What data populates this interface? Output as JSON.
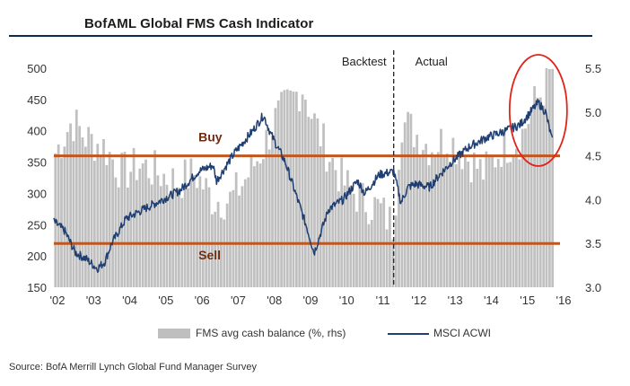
{
  "title": "BofAML Global FMS Cash Indicator",
  "source": "Source: BofA Merrill Lynch Global Fund Manager Survey",
  "chart_data": {
    "type": "bar+line",
    "x_tick_labels": [
      "'02",
      "'03",
      "'04",
      "'05",
      "'06",
      "'07",
      "'08",
      "'09",
      "'10",
      "'11",
      "'12",
      "'13",
      "'14",
      "'15",
      "'16"
    ],
    "x_range": [
      2002.0,
      2016.0
    ],
    "left_axis": {
      "ylim": [
        150,
        500
      ],
      "ticks": [
        "150",
        "200",
        "250",
        "300",
        "350",
        "400",
        "450",
        "500"
      ],
      "series": "MSCI ACWI"
    },
    "right_axis": {
      "ylim": [
        3.0,
        5.5
      ],
      "ticks": [
        "3.0",
        "3.5",
        "4.0",
        "4.5",
        "5.0",
        "5.5"
      ],
      "series": "FMS avg cash balance (%, rhs)"
    },
    "annotations": {
      "buy_label": "Buy",
      "buy_level_lhs": 360,
      "sell_label": "Sell",
      "sell_level_lhs": 220,
      "backtest_label": "Backtest",
      "actual_label": "Actual",
      "divider_x": 2011.4
    },
    "legend": {
      "bar_label": "FMS avg cash balance (%, rhs)",
      "line_label": "MSCI ACWI"
    },
    "cash_series_annual": {
      "x": [
        2002,
        2003,
        2004,
        2005,
        2006,
        2007,
        2008,
        2009,
        2010,
        2011,
        2012,
        2013,
        2014,
        2015
      ],
      "values": [
        4.5,
        4.6,
        4.3,
        4.3,
        4.1,
        4.5,
        5.0,
        5.0,
        4.1,
        3.6,
        4.7,
        4.5,
        4.6,
        5.2
      ]
    },
    "cash_series": {
      "x": [
        2002.0,
        2002.5,
        2002.9,
        2003.4,
        2003.9,
        2004.4,
        2004.9,
        2005.4,
        2005.9,
        2006.4,
        2006.9,
        2007.4,
        2007.8,
        2008.1,
        2008.5,
        2008.9,
        2009.1,
        2009.5,
        2010.0,
        2010.5,
        2011.0,
        2011.4,
        2011.6,
        2011.9,
        2012.4,
        2012.9,
        2013.4,
        2013.9,
        2014.4,
        2014.9,
        2015.3,
        2015.6,
        2015.8
      ],
      "values": [
        4.5,
        4.9,
        4.7,
        4.6,
        4.3,
        4.4,
        4.3,
        4.2,
        4.3,
        4.0,
        4.0,
        4.3,
        4.6,
        4.9,
        5.1,
        5.3,
        5.0,
        4.6,
        4.2,
        4.0,
        3.9,
        3.7,
        4.9,
        4.8,
        4.6,
        4.7,
        4.5,
        4.3,
        4.6,
        4.7,
        5.1,
        5.3,
        5.5
      ]
    },
    "acwi_series": {
      "x": [
        2002.0,
        2002.3,
        2002.6,
        2002.9,
        2003.2,
        2003.4,
        2003.6,
        2004.0,
        2004.5,
        2005.0,
        2005.5,
        2006.0,
        2006.4,
        2006.5,
        2007.0,
        2007.5,
        2007.8,
        2008.0,
        2008.4,
        2008.8,
        2009.0,
        2009.2,
        2009.6,
        2010.0,
        2010.4,
        2010.6,
        2011.0,
        2011.4,
        2011.6,
        2011.8,
        2012.0,
        2012.4,
        2012.6,
        2013.0,
        2013.5,
        2014.0,
        2014.5,
        2014.9,
        2015.4,
        2015.6,
        2015.8
      ],
      "values": [
        255,
        240,
        205,
        195,
        180,
        190,
        220,
        260,
        275,
        290,
        305,
        335,
        345,
        320,
        365,
        400,
        425,
        395,
        350,
        280,
        245,
        205,
        275,
        290,
        320,
        300,
        330,
        335,
        285,
        310,
        315,
        310,
        325,
        350,
        375,
        390,
        400,
        410,
        445,
        430,
        380
      ]
    }
  }
}
